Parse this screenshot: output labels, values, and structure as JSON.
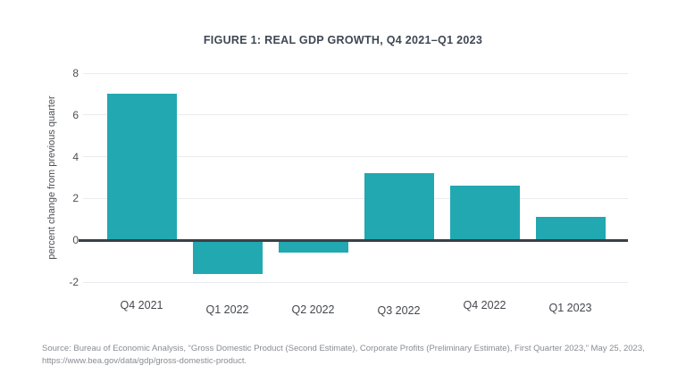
{
  "figure": {
    "title": "FIGURE 1: REAL GDP GROWTH, Q4 2021–Q1 2023",
    "source_note": "Source: Bureau of Economic Analysis, “Gross Domestic Product (Second Estimate), Corporate Profits (Preliminary Estimate), First Quarter 2023,” May 25, 2023, https://www.bea.gov/data/gdp/gross-domestic-product."
  },
  "chart_data": {
    "type": "bar",
    "title": "FIGURE 1: REAL GDP GROWTH, Q4 2021–Q1 2023",
    "categories": [
      "Q4 2021",
      "Q1 2022",
      "Q2 2022",
      "Q3 2022",
      "Q4 2022",
      "Q1 2023"
    ],
    "values": [
      7.0,
      -1.6,
      -0.6,
      3.2,
      2.6,
      1.1
    ],
    "xlabel": "",
    "ylabel": "percent change from previous quarter",
    "ylim": [
      -2,
      8
    ],
    "yticks": [
      8,
      6,
      4,
      2,
      0,
      -2
    ],
    "grid": true,
    "legend_position": "none",
    "bar_color": "#21a8b1",
    "zero_line_color": "#3b3f46",
    "gridline_color": "#eaebf0",
    "source": "Source: Bureau of Economic Analysis, “Gross Domestic Product (Second Estimate), Corporate Profits (Preliminary Estimate), First Quarter 2023,” May 25, 2023, https://www.bea.gov/data/gdp/gross-domestic-product."
  }
}
